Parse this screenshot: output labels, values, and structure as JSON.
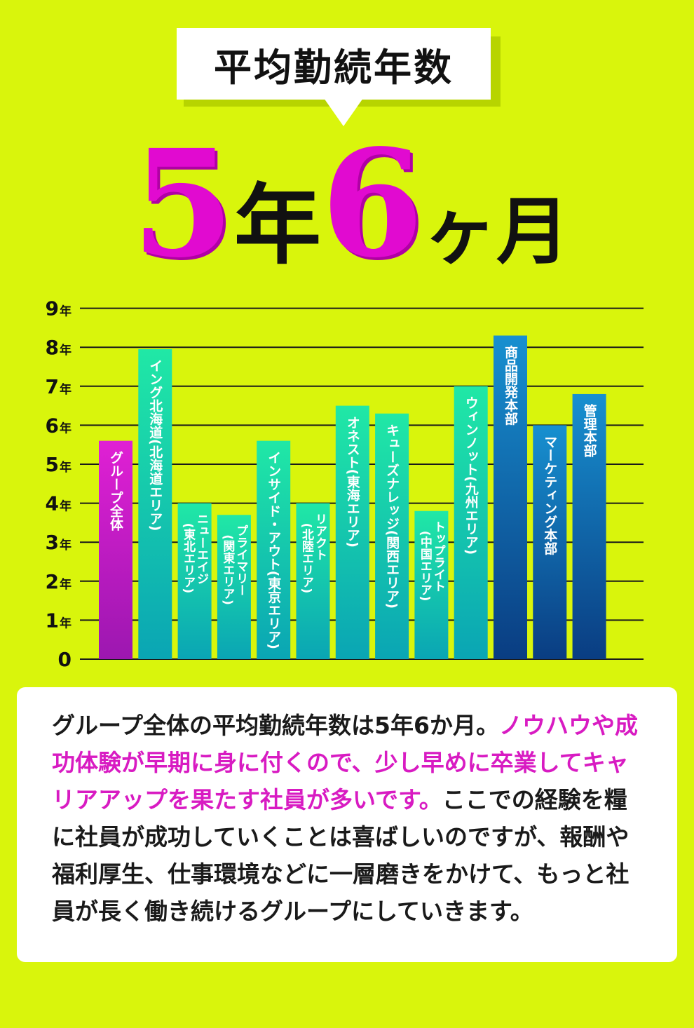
{
  "header": {
    "title": "平均勤続年数",
    "headline_num1": "5",
    "headline_unit1": "年",
    "headline_num2": "6",
    "headline_unit2": "ヶ月"
  },
  "chart_data": {
    "type": "bar",
    "ylim": [
      0,
      9
    ],
    "yticks": [
      {
        "value": 0,
        "label": "0",
        "unit": ""
      },
      {
        "value": 1,
        "label": "1",
        "unit": "年"
      },
      {
        "value": 2,
        "label": "2",
        "unit": "年"
      },
      {
        "value": 3,
        "label": "3",
        "unit": "年"
      },
      {
        "value": 4,
        "label": "4",
        "unit": "年"
      },
      {
        "value": 5,
        "label": "5",
        "unit": "年"
      },
      {
        "value": 6,
        "label": "6",
        "unit": "年"
      },
      {
        "value": 7,
        "label": "7",
        "unit": "年"
      },
      {
        "value": 8,
        "label": "8",
        "unit": "年"
      },
      {
        "value": 9,
        "label": "9",
        "unit": "年"
      }
    ],
    "grid": true,
    "bars": [
      {
        "lines": [
          "グループ全体"
        ],
        "value": 5.6,
        "color": "#c21ac2"
      },
      {
        "lines": [
          "イング北海道(北海道エリア)"
        ],
        "value": 7.95,
        "color": "#1ad9a8"
      },
      {
        "lines": [
          "ニューエイジ",
          "(東北エリア)"
        ],
        "value": 4.0,
        "color": "#1ad9a8"
      },
      {
        "lines": [
          "プライマリー",
          "(関東エリア)"
        ],
        "value": 3.7,
        "color": "#1ad9a8"
      },
      {
        "lines": [
          "インサイド・アウト(東京エリア)"
        ],
        "value": 5.6,
        "color": "#1ad9a8"
      },
      {
        "lines": [
          "リアクト",
          "(北陸エリア)"
        ],
        "value": 4.0,
        "color": "#1ad9a8"
      },
      {
        "lines": [
          "オネスト(東海エリア)"
        ],
        "value": 6.5,
        "color": "#1ad9a8"
      },
      {
        "lines": [
          "キューズナレッジ(関西エリア)"
        ],
        "value": 6.3,
        "color": "#1ad9a8"
      },
      {
        "lines": [
          "トップライト",
          "(中国エリア)"
        ],
        "value": 3.8,
        "color": "#1ad9a8"
      },
      {
        "lines": [
          "ウィンノット(九州エリア)"
        ],
        "value": 7.0,
        "color": "#1ad9a8"
      },
      {
        "lines": [
          "商品開発本部"
        ],
        "value": 8.3,
        "color": "#1572c4"
      },
      {
        "lines": [
          "マーケティング本部"
        ],
        "value": 6.0,
        "color": "#1572c4"
      },
      {
        "lines": [
          "管理本部"
        ],
        "value": 6.8,
        "color": "#1572c4"
      }
    ]
  },
  "panel": {
    "segments": [
      {
        "text": "グループ全体の平均勤続年数は5年6か月。",
        "highlight": false
      },
      {
        "text": "ノウハウや成功体験が早期に身に付くので、少し早めに卒業してキャリアアップを果たす社員が多いです。",
        "highlight": true
      },
      {
        "text": "ここでの経験を糧に社員が成功していくことは喜ばしいのですが、報酬や福利厚生、仕事環境などに一層磨きをかけて、もっと社員が長く働き続けるグループにしていきます。",
        "highlight": false
      }
    ]
  }
}
